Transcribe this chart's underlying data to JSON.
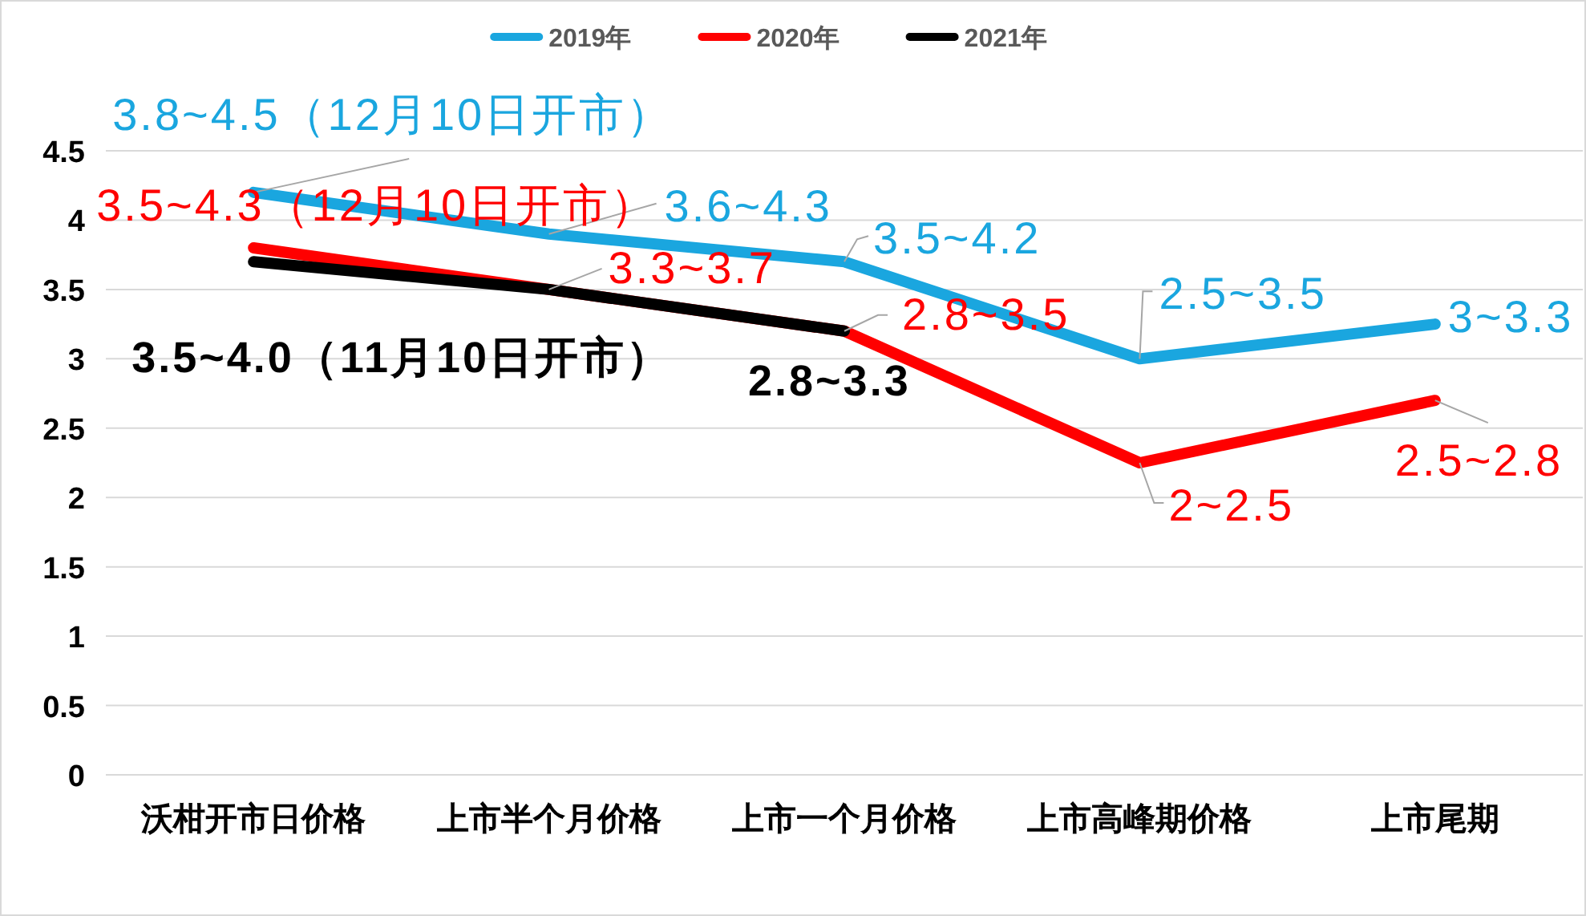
{
  "chart_data": {
    "type": "line",
    "categories": [
      "沃柑开市日价格",
      "上市半个月价格",
      "上市一个月价格",
      "上市高峰期价格",
      "上市尾期"
    ],
    "series": [
      {
        "name": "2019年",
        "color": "#1aa6df",
        "values": [
          4.2,
          3.9,
          3.7,
          3.0,
          3.25
        ]
      },
      {
        "name": "2020年",
        "color": "#ff0000",
        "values": [
          3.8,
          3.5,
          3.2,
          2.25,
          2.7
        ]
      },
      {
        "name": "2021年",
        "color": "#000000",
        "values": [
          3.7,
          3.5,
          3.2,
          null,
          null
        ]
      }
    ],
    "annotations": [
      {
        "text": "3.8~4.5（12月10日开市）",
        "x": "沃柑开市日价格",
        "y": 4.2
      },
      {
        "text": "3.6~4.3",
        "x": "上市半个月价格",
        "y": 3.9
      },
      {
        "text": "3.5~4.2",
        "x": "上市一个月价格",
        "y": 3.7
      },
      {
        "text": "2.5~3.5",
        "x": "上市高峰期价格",
        "y": 3.0
      },
      {
        "text": "3~3.3",
        "x": "上市尾期",
        "y": 3.25
      },
      {
        "text": "3.5~4.3（12月10日开市）",
        "x": "沃柑开市日价格",
        "y": 3.8
      },
      {
        "text": "3.3~3.7",
        "x": "上市半个月价格",
        "y": 3.5
      },
      {
        "text": "2.8~3.5",
        "x": "上市一个月价格",
        "y": 3.2
      },
      {
        "text": "2~2.5",
        "x": "上市高峰期价格",
        "y": 2.25
      },
      {
        "text": "2.5~2.8",
        "x": "上市尾期",
        "y": 2.7
      },
      {
        "text": "3.5~4.0（11月10日开市）",
        "x": "沃柑开市日价格",
        "y": 3.7
      },
      {
        "text": "2.8~3.3",
        "x": "上市一个月价格",
        "y": 3.2
      }
    ],
    "ylim": [
      0,
      4.5
    ],
    "yticks": [
      0,
      0.5,
      1,
      1.5,
      2,
      2.5,
      3,
      3.5,
      4,
      4.5
    ],
    "grid": "y",
    "legend": "top"
  }
}
